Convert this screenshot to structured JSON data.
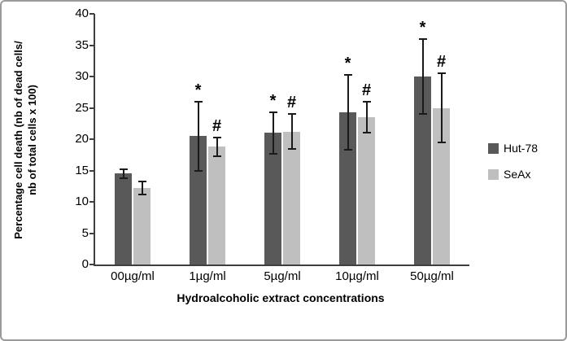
{
  "chart_data": {
    "type": "bar",
    "title": "",
    "categories": [
      "00µg/ml",
      "1µg/ml",
      "5µg/ml",
      "10µg/ml",
      "50µg/ml"
    ],
    "series": [
      {
        "name": "Hut-78",
        "color": "#595959",
        "values": [
          14.5,
          20.5,
          21.0,
          24.3,
          30.0
        ],
        "errors": [
          0.7,
          5.5,
          3.3,
          6.0,
          6.0
        ],
        "annotations": [
          "",
          "*",
          "*",
          "*",
          "*"
        ]
      },
      {
        "name": "SeAx",
        "color": "#bfbfbf",
        "values": [
          12.2,
          18.8,
          21.2,
          23.5,
          25.0
        ],
        "errors": [
          1.0,
          1.5,
          2.8,
          2.5,
          5.5
        ],
        "annotations": [
          "",
          "#",
          "#",
          "#",
          "#"
        ]
      }
    ],
    "ylabel_line1": "Percentage cell death (nb of dead cells/",
    "ylabel_line2": "nb of total cells x 100)",
    "xlabel": "Hydroalcoholic extract concentrations",
    "ylim": [
      0,
      40
    ],
    "yticks": [
      0,
      5,
      10,
      15,
      20,
      25,
      30,
      35,
      40
    ],
    "legend_position": "right",
    "grid": false
  }
}
